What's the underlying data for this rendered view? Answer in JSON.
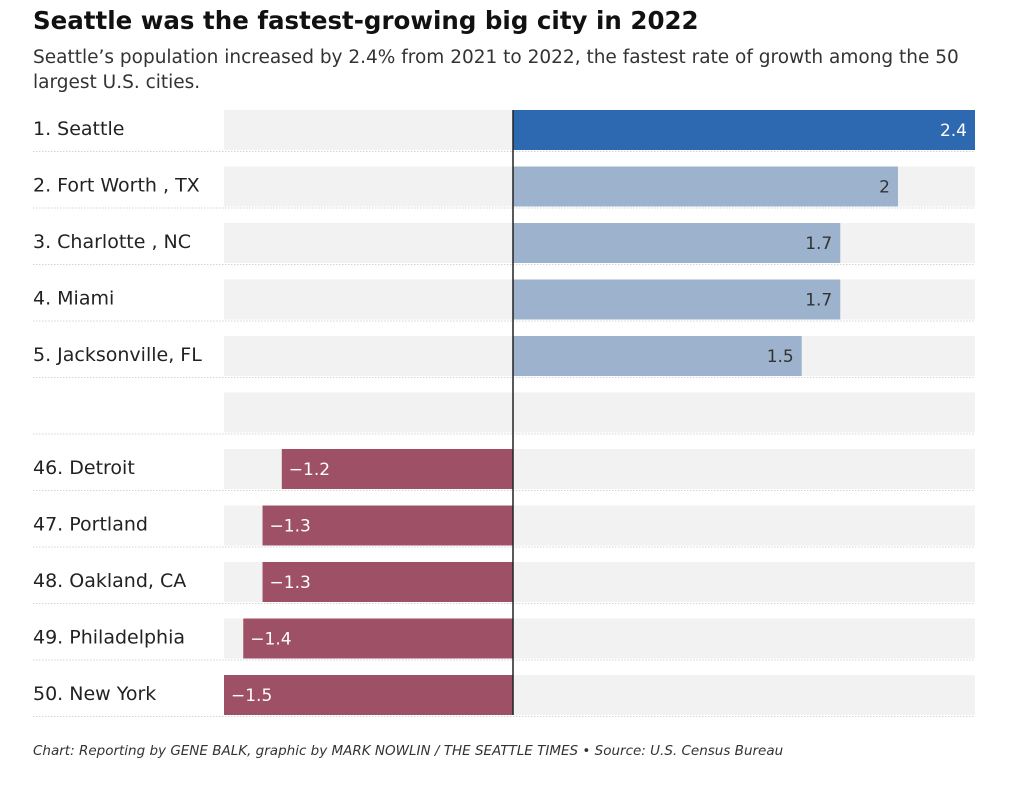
{
  "colors": {
    "top": "#2d69b1",
    "growth": "#9db3cd",
    "decline": "#9e5166",
    "track": "#f2f2f2",
    "axis": "#222222",
    "value_on_dark": "#ffffff",
    "value_on_light": "#333333"
  },
  "chart_data": {
    "type": "bar",
    "orientation": "horizontal",
    "title": "Seattle was the fastest-growing big city in 2022",
    "subtitle": "Seattle’s population increased by 2.4% from 2021 to 2022, the fastest rate of growth among the 50 largest U.S. cities.",
    "xlim": [
      -1.5,
      2.4
    ],
    "rows": [
      {
        "label": "1. Seattle",
        "value": 2.4,
        "display": "2.4",
        "group": "top"
      },
      {
        "label": "2. Fort Worth , TX",
        "value": 2.0,
        "display": "2",
        "group": "growth"
      },
      {
        "label": "3. Charlotte , NC",
        "value": 1.7,
        "display": "1.7",
        "group": "growth"
      },
      {
        "label": "4. Miami",
        "value": 1.7,
        "display": "1.7",
        "group": "growth"
      },
      {
        "label": "5. Jacksonville, FL",
        "value": 1.5,
        "display": "1.5",
        "group": "growth"
      },
      {
        "label": "",
        "value": null,
        "display": "",
        "group": "gap"
      },
      {
        "label": "46. Detroit",
        "value": -1.2,
        "display": "−1.2",
        "group": "decline"
      },
      {
        "label": "47. Portland",
        "value": -1.3,
        "display": "−1.3",
        "group": "decline"
      },
      {
        "label": "48. Oakland, CA",
        "value": -1.3,
        "display": "−1.3",
        "group": "decline"
      },
      {
        "label": "49. Philadelphia",
        "value": -1.4,
        "display": "−1.4",
        "group": "decline"
      },
      {
        "label": "50. New York",
        "value": -1.5,
        "display": "−1.5",
        "group": "decline"
      }
    ],
    "footer": "Chart: Reporting by GENE BALK, graphic by MARK NOWLIN / THE SEATTLE TIMES • Source: U.S. Census Bureau"
  }
}
